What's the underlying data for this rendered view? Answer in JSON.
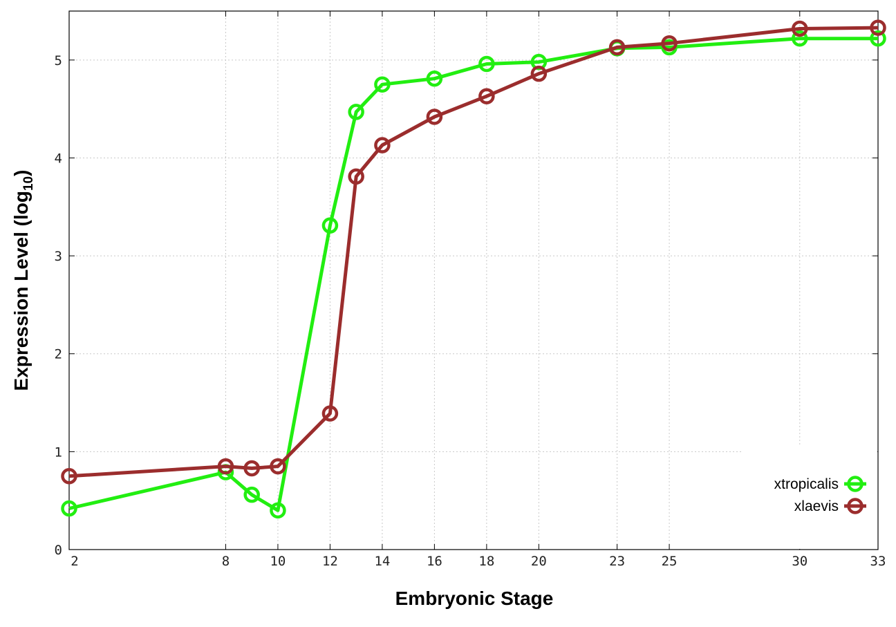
{
  "chart_data": {
    "type": "line",
    "xlabel": "Embryonic Stage",
    "ylabel_main": "Expression Level (log",
    "ylabel_sub": "10",
    "ylabel_close": ")",
    "xlim": [
      2,
      33
    ],
    "ylim": [
      0,
      5.5
    ],
    "x_tick_positions": [
      2,
      8,
      10,
      12,
      14,
      16,
      18,
      20,
      23,
      25,
      30,
      33
    ],
    "x_tick_labels": [
      "2",
      "8",
      "10",
      "12",
      "14",
      "16",
      "18",
      "20",
      "23",
      "25",
      "30",
      "33"
    ],
    "y_tick_positions": [
      0,
      1,
      2,
      3,
      4,
      5
    ],
    "y_tick_labels": [
      "0",
      "1",
      "2",
      "3",
      "4",
      "5"
    ],
    "x": [
      2,
      8,
      9,
      10,
      12,
      13,
      14,
      16,
      18,
      20,
      23,
      25,
      30,
      33
    ],
    "grid": true,
    "legend_position": "bottom-right",
    "series": [
      {
        "name": "xtropicalis",
        "color": "#22ee11",
        "values": [
          0.42,
          0.79,
          0.56,
          0.4,
          3.31,
          4.47,
          4.75,
          4.81,
          4.96,
          4.98,
          5.12,
          5.13,
          5.22,
          5.22
        ]
      },
      {
        "name": "xlaevis",
        "color": "#9b2d2d",
        "values": [
          0.75,
          0.85,
          0.83,
          0.85,
          1.39,
          3.81,
          4.13,
          4.42,
          4.63,
          4.86,
          5.13,
          5.17,
          5.32,
          5.33
        ]
      }
    ]
  }
}
